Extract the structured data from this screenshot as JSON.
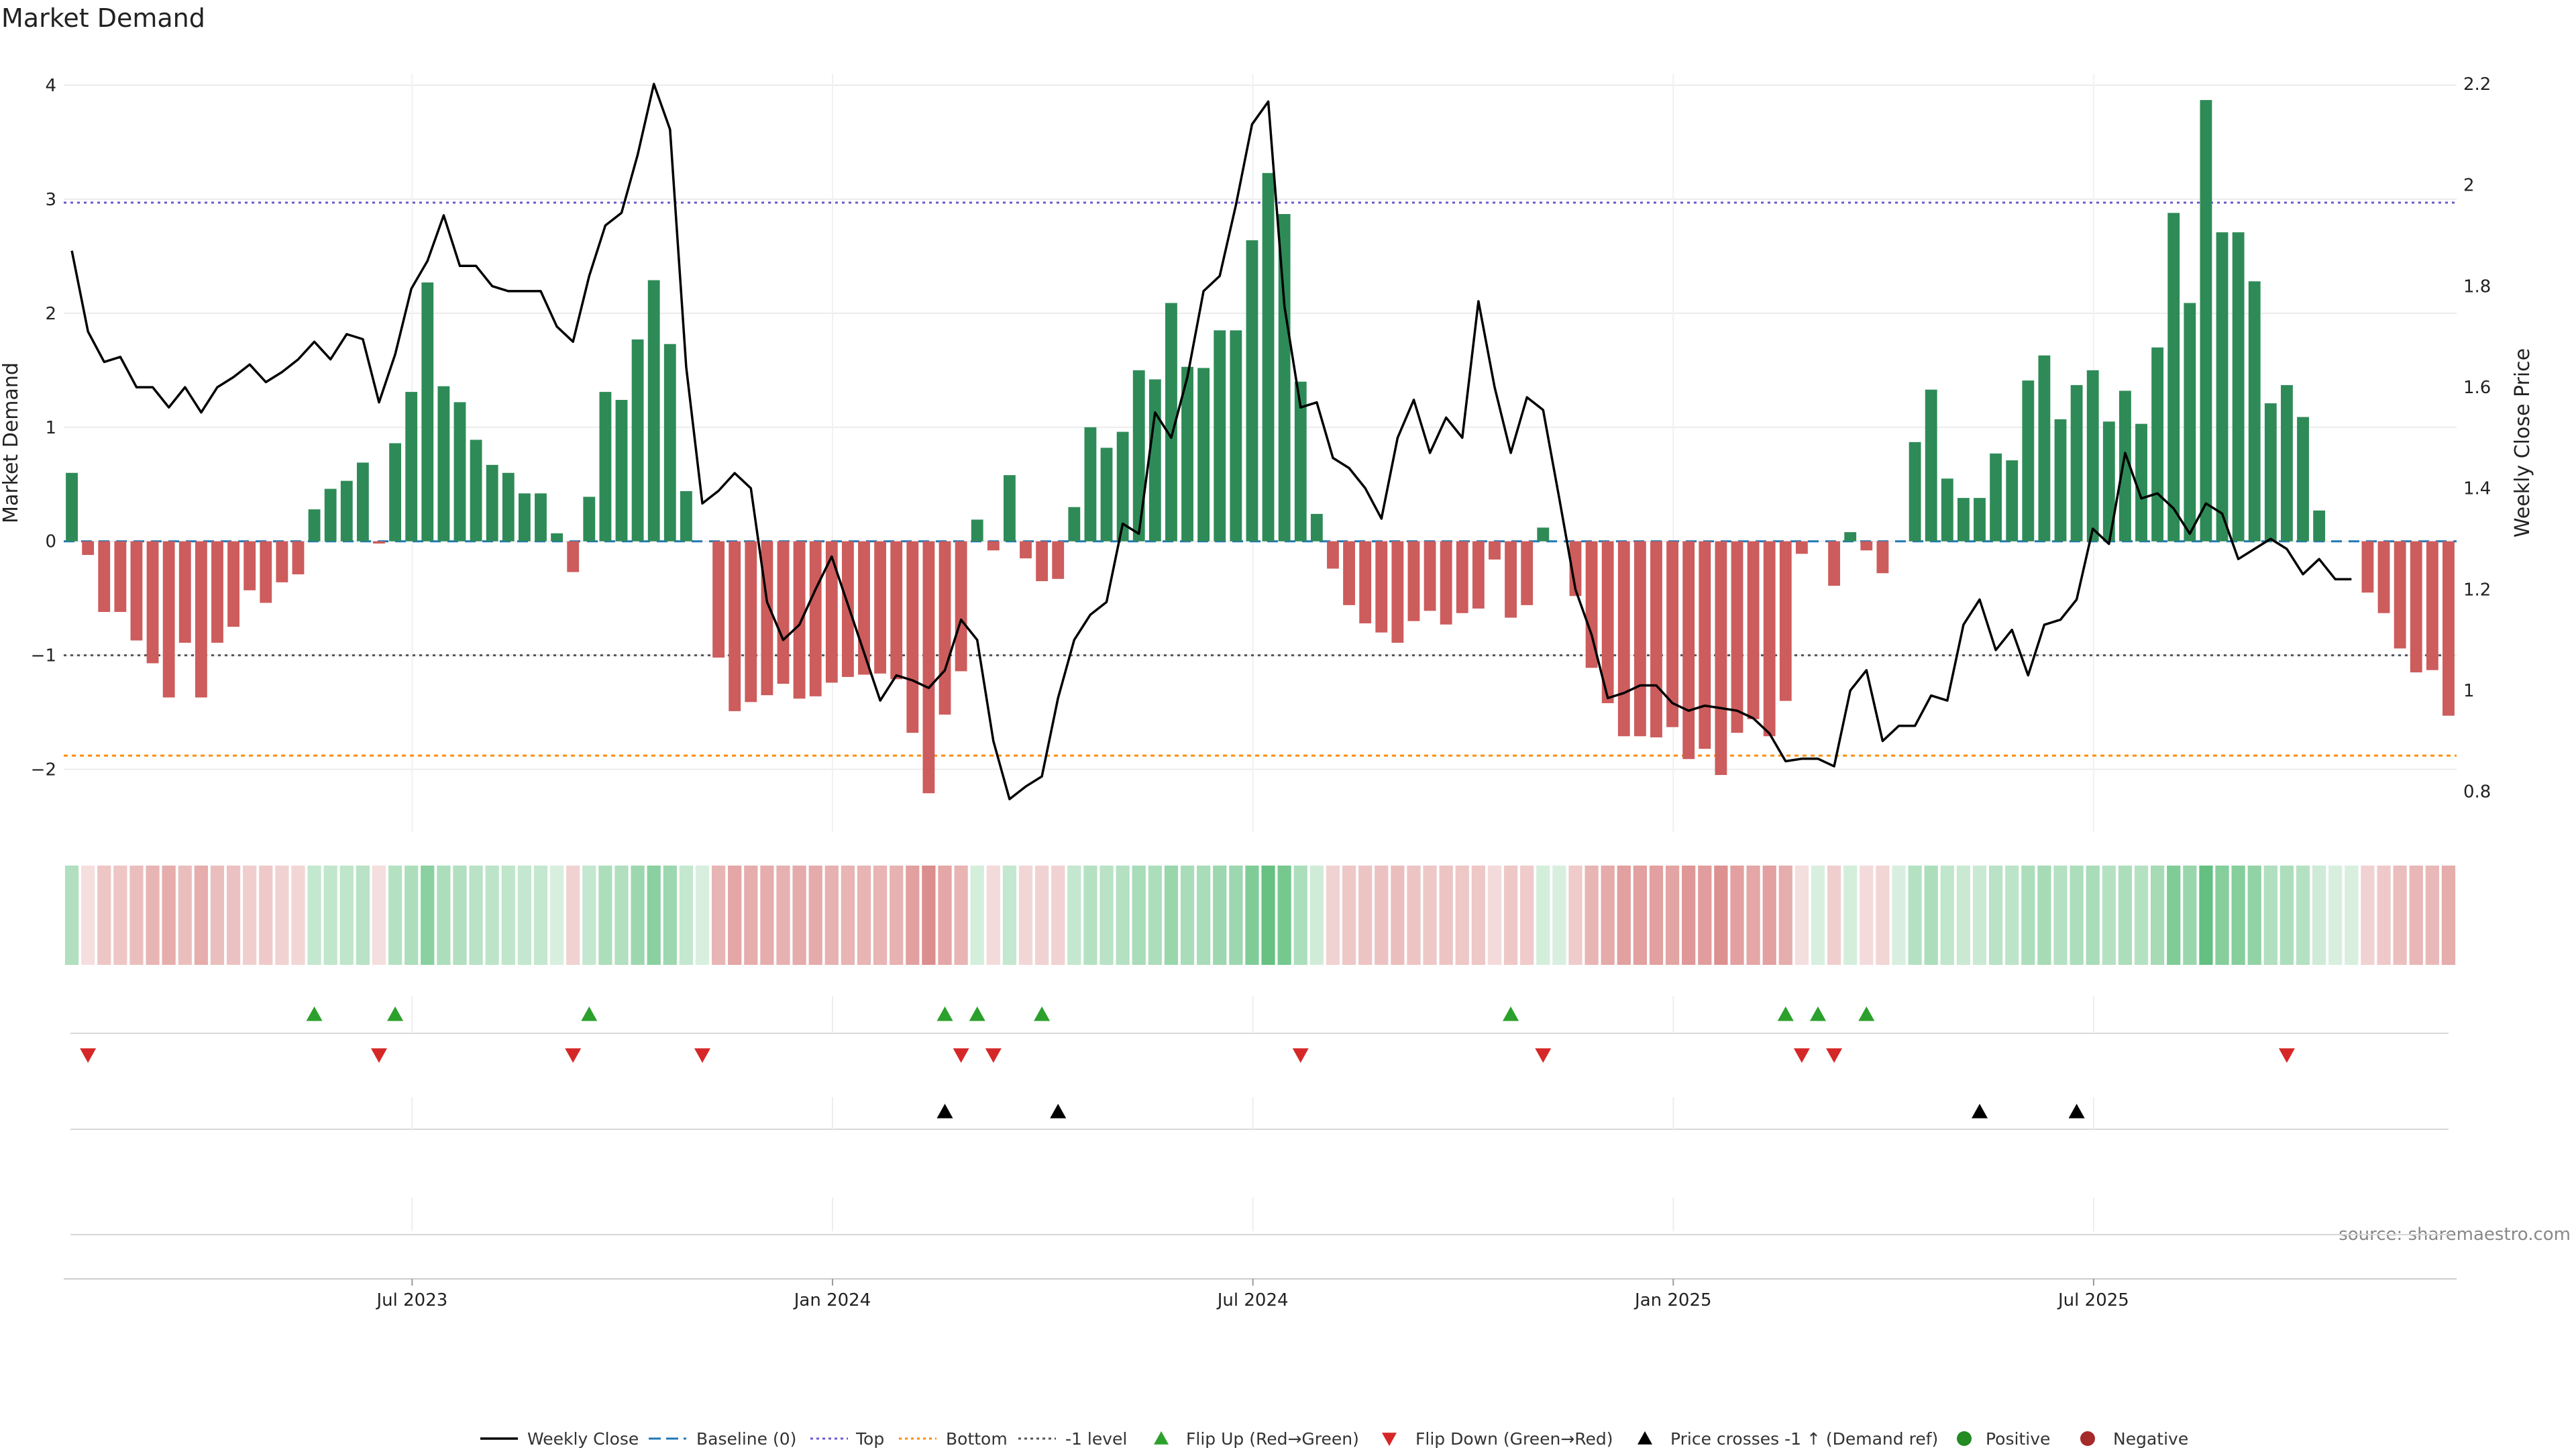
{
  "chart_data": {
    "type": "bar",
    "title": "Market Demand",
    "ylabel_left": "Market Demand",
    "ylabel_right": "Weekly Close Price",
    "source": "source: sharemaestro.com",
    "x_ticks": [
      "Jul 2023",
      "Jan 2024",
      "Jul 2024",
      "Jan 2025",
      "Jul 2025"
    ],
    "x_tick_weeks": [
      21,
      47,
      73,
      99,
      125
    ],
    "y_left_ticks": [
      "−2",
      "−1",
      "0",
      "1",
      "2",
      "3",
      "4"
    ],
    "y_left_tick_values": [
      -2,
      -1,
      0,
      1,
      2,
      3,
      4
    ],
    "y_left_range": [
      -2.55,
      4.1
    ],
    "y_right_ticks": [
      "0.8",
      "1",
      "1.2",
      "1.4",
      "1.6",
      "1.8",
      "2",
      "2.2"
    ],
    "y_right_tick_values": [
      0.8,
      1.0,
      1.2,
      1.4,
      1.6,
      1.8,
      2.0,
      2.2
    ],
    "y_right_range": [
      0.72,
      2.22
    ],
    "levels": {
      "top": 2.97,
      "bottom": -1.88,
      "minus_one": -1.0,
      "baseline": 0
    },
    "demand": [
      0.6,
      -0.12,
      -0.62,
      -0.62,
      -0.87,
      -1.07,
      -1.37,
      -0.89,
      -1.37,
      -0.89,
      -0.75,
      -0.43,
      -0.54,
      -0.36,
      -0.29,
      0.28,
      0.46,
      0.53,
      0.69,
      -0.02,
      0.86,
      1.31,
      2.27,
      1.36,
      1.22,
      0.89,
      0.67,
      0.6,
      0.42,
      0.42,
      0.07,
      -0.27,
      0.39,
      1.31,
      1.24,
      1.77,
      2.29,
      1.73,
      0.44,
      0,
      -1.02,
      -1.49,
      -1.41,
      -1.35,
      -1.25,
      -1.38,
      -1.36,
      -1.24,
      -1.19,
      -1.17,
      -1.16,
      -1.21,
      -1.68,
      -2.21,
      -1.52,
      -1.14,
      0.19,
      -0.08,
      0.58,
      -0.15,
      -0.35,
      -0.33,
      0.3,
      1.0,
      0.82,
      0.96,
      1.5,
      1.42,
      2.09,
      1.53,
      1.52,
      1.85,
      1.85,
      2.64,
      3.23,
      2.87,
      1.4,
      0.24,
      -0.24,
      -0.56,
      -0.72,
      -0.8,
      -0.89,
      -0.7,
      -0.61,
      -0.73,
      -0.63,
      -0.59,
      -0.16,
      -0.67,
      -0.56,
      0.12,
      0,
      -0.48,
      -1.11,
      -1.42,
      -1.71,
      -1.71,
      -1.72,
      -1.63,
      -1.91,
      -1.82,
      -2.05,
      -1.68,
      -1.56,
      -1.71,
      -1.4,
      -0.11,
      0,
      -0.39,
      0.08,
      -0.08,
      -0.28,
      0,
      0.87,
      1.33,
      0.55,
      0.38,
      0.38,
      0.77,
      0.71,
      1.41,
      1.63,
      1.07,
      1.37,
      1.5,
      1.05,
      1.32,
      1.03,
      1.7,
      2.88,
      2.09,
      3.87,
      2.71,
      2.71,
      2.28,
      1.21,
      1.37,
      1.09,
      0.27,
      0,
      0,
      -0.45,
      -0.63,
      -0.94,
      -1.15,
      -1.13,
      -1.53
    ],
    "close": [
      1.87,
      1.71,
      1.65,
      1.66,
      1.6,
      1.6,
      1.56,
      1.6,
      1.55,
      1.6,
      1.62,
      1.645,
      1.61,
      1.63,
      1.655,
      1.69,
      1.655,
      1.705,
      1.695,
      1.57,
      1.665,
      1.795,
      1.85,
      1.94,
      1.84,
      1.84,
      1.8,
      1.79,
      1.79,
      1.79,
      1.72,
      1.69,
      1.82,
      1.92,
      1.945,
      2.06,
      2.2,
      2.11,
      1.64,
      1.37,
      1.395,
      1.43,
      1.4,
      1.175,
      1.1,
      1.13,
      1.2,
      1.265,
      1.17,
      1.075,
      0.98,
      1.03,
      1.02,
      1.005,
      1.04,
      1.14,
      1.1,
      0.9,
      0.785,
      0.81,
      0.83,
      0.985,
      1.1,
      1.15,
      1.175,
      1.33,
      1.31,
      1.55,
      1.5,
      1.62,
      1.79,
      1.82,
      1.96,
      2.12,
      2.165,
      1.76,
      1.56,
      1.57,
      1.46,
      1.44,
      1.4,
      1.34,
      1.5,
      1.575,
      1.47,
      1.54,
      1.5,
      1.77,
      1.6,
      1.47,
      1.58,
      1.555,
      1.38,
      1.2,
      1.11,
      0.985,
      0.995,
      1.01,
      1.01,
      0.975,
      0.96,
      0.97,
      0.965,
      0.96,
      0.945,
      0.915,
      0.86,
      0.865,
      0.865,
      0.85,
      1.0,
      1.04,
      0.9,
      0.93,
      0.93,
      0.99,
      0.98,
      1.13,
      1.18,
      1.08,
      1.12,
      1.03,
      1.13,
      1.14,
      1.18,
      1.32,
      1.29,
      1.47,
      1.38,
      1.39,
      1.36,
      1.31,
      1.37,
      1.35,
      1.26,
      1.28,
      1.3,
      1.28,
      1.23,
      1.26,
      1.22,
      1.22
    ],
    "strip_intensity": [
      0.4,
      0.2,
      0.35,
      0.35,
      0.4,
      0.45,
      0.5,
      0.4,
      0.5,
      0.4,
      0.38,
      0.3,
      0.33,
      0.28,
      0.25,
      0.3,
      0.32,
      0.33,
      0.36,
      0.2,
      0.38,
      0.42,
      0.6,
      0.42,
      0.4,
      0.36,
      0.34,
      0.33,
      0.3,
      0.3,
      0.2,
      0.28,
      0.3,
      0.42,
      0.4,
      0.5,
      0.6,
      0.5,
      0.3,
      0.2,
      0.45,
      0.55,
      0.5,
      0.5,
      0.48,
      0.52,
      0.52,
      0.48,
      0.46,
      0.46,
      0.46,
      0.47,
      0.58,
      0.7,
      0.55,
      0.46,
      0.22,
      0.22,
      0.3,
      0.25,
      0.28,
      0.28,
      0.3,
      0.38,
      0.36,
      0.38,
      0.44,
      0.42,
      0.52,
      0.44,
      0.44,
      0.5,
      0.5,
      0.65,
      0.78,
      0.7,
      0.42,
      0.24,
      0.28,
      0.34,
      0.36,
      0.38,
      0.4,
      0.36,
      0.34,
      0.36,
      0.34,
      0.34,
      0.22,
      0.34,
      0.32,
      0.22,
      0.2,
      0.32,
      0.45,
      0.52,
      0.58,
      0.58,
      0.58,
      0.56,
      0.64,
      0.6,
      0.68,
      0.58,
      0.55,
      0.58,
      0.5,
      0.2,
      0.2,
      0.3,
      0.22,
      0.22,
      0.26,
      0.2,
      0.38,
      0.42,
      0.32,
      0.28,
      0.28,
      0.36,
      0.34,
      0.42,
      0.46,
      0.38,
      0.42,
      0.44,
      0.38,
      0.42,
      0.38,
      0.46,
      0.65,
      0.52,
      0.8,
      0.62,
      0.62,
      0.56,
      0.4,
      0.42,
      0.38,
      0.26,
      0.2,
      0.2,
      0.28,
      0.33,
      0.4,
      0.44,
      0.43,
      0.5
    ],
    "flip_up_weeks": [
      15,
      20,
      32,
      54,
      56,
      60,
      89,
      106,
      108,
      111
    ],
    "flip_down_weeks": [
      1,
      19,
      31,
      39,
      55,
      57,
      76,
      91,
      107,
      109,
      137
    ],
    "price_cross_weeks": [
      54,
      61,
      118,
      124
    ],
    "legend": [
      "Weekly Close",
      "Baseline (0)",
      "Top",
      "Bottom",
      "-1 level",
      "Flip Up (Red→Green)",
      "Flip Down (Green→Red)",
      "Price crosses -1 ↑ (Demand ref)",
      "Positive",
      "Negative"
    ],
    "colors": {
      "positive": "#2e8b57",
      "negative": "#cd5c5c",
      "price": "#000000",
      "baseline": "#1f77b4",
      "top": "#6a5acd",
      "bottom": "#ff8c00",
      "minus_one": "#555555",
      "flip_up": "#2ca02c",
      "flip_down": "#d62728",
      "legend_positive": "#228b22",
      "legend_negative": "#a52a2a"
    }
  }
}
